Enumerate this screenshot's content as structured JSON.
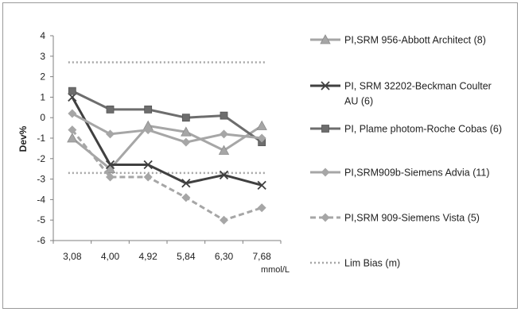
{
  "chart_data": {
    "type": "line",
    "title": "",
    "xlabel": "mmol/L",
    "ylabel": "Dev%",
    "categories": [
      "3,08",
      "4,00",
      "4,92",
      "5,84",
      "6,30",
      "7,68"
    ],
    "ylim": [
      -6,
      4
    ],
    "yticks": [
      4,
      3,
      2,
      1,
      0,
      -1,
      -2,
      -3,
      -4,
      -5,
      -6
    ],
    "grid": false,
    "legend_position": "right",
    "series": [
      {
        "name": "PI,SRM 956-Abbott Architect (8)",
        "legend_lines": [
          "PI,SRM 956-Abbott Architect (8)"
        ],
        "values": [
          -1.0,
          -2.5,
          -0.4,
          -0.7,
          -1.6,
          -0.4
        ],
        "color": "#a6a6a6",
        "marker": "triangle",
        "dash": "solid"
      },
      {
        "name": "PI, SRM 32202-Beckman Coulter AU (6)",
        "legend_lines": [
          "PI, SRM 32202-Beckman Coulter",
          "AU (6)"
        ],
        "values": [
          1.0,
          -2.3,
          -2.3,
          -3.2,
          -2.8,
          -3.3
        ],
        "color": "#404040",
        "marker": "x",
        "dash": "solid"
      },
      {
        "name": "PI, Plame photom-Roche Cobas (6)",
        "legend_lines": [
          "PI, Plame photom-Roche Cobas (6)"
        ],
        "values": [
          1.3,
          0.4,
          0.4,
          0.0,
          0.1,
          -1.2
        ],
        "color": "#6d6d6d",
        "marker": "square",
        "dash": "solid"
      },
      {
        "name": "PI,SRM909b-Siemens Advia (11)",
        "legend_lines": [
          "PI,SRM909b-Siemens Advia (11)"
        ],
        "values": [
          0.2,
          -0.8,
          -0.6,
          -1.2,
          -0.8,
          -1.0
        ],
        "color": "#a6a6a6",
        "marker": "diamond",
        "dash": "solid"
      },
      {
        "name": "PI,SRM 909-Siemens Vista (5)",
        "legend_lines": [
          "PI,SRM 909-Siemens Vista (5)"
        ],
        "values": [
          -0.6,
          -2.9,
          -2.9,
          -3.9,
          -5.0,
          -4.4
        ],
        "color": "#a6a6a6",
        "marker": "diamond",
        "dash": "dashed"
      }
    ],
    "reference_lines": {
      "name": "Lim Bias (m)",
      "legend_lines": [
        "Lim Bias (m)"
      ],
      "values": [
        2.7,
        -2.7
      ],
      "color": "#a6a6a6",
      "dash": "dotted"
    }
  }
}
